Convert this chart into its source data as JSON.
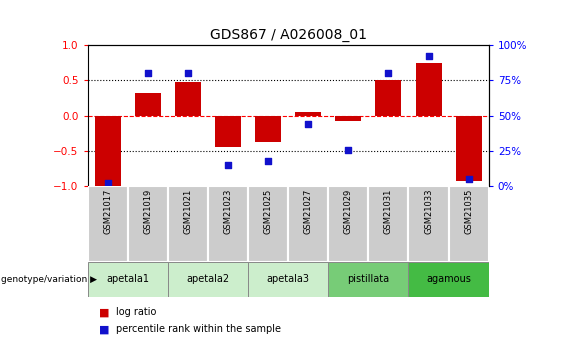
{
  "title": "GDS867 / A026008_01",
  "samples": [
    "GSM21017",
    "GSM21019",
    "GSM21021",
    "GSM21023",
    "GSM21025",
    "GSM21027",
    "GSM21029",
    "GSM21031",
    "GSM21033",
    "GSM21035"
  ],
  "log_ratio": [
    -1.0,
    0.32,
    0.47,
    -0.45,
    -0.38,
    0.05,
    -0.08,
    0.5,
    0.75,
    -0.93
  ],
  "percentile": [
    2,
    80,
    80,
    15,
    18,
    44,
    26,
    80,
    92,
    5
  ],
  "bar_color": "#cc0000",
  "dot_color": "#1111cc",
  "ylim": [
    -1,
    1
  ],
  "yticks": [
    -1,
    -0.5,
    0,
    0.5,
    1
  ],
  "y2ticks": [
    0,
    25,
    50,
    75,
    100
  ],
  "y2ticklabels": [
    "0%",
    "25%",
    "50%",
    "75%",
    "100%"
  ],
  "dotted_lines_black": [
    -0.5,
    0.5
  ],
  "dotted_line_red": 0,
  "groups": [
    {
      "label": "apetala1",
      "start": 0,
      "end": 2,
      "color": "#cceecc"
    },
    {
      "label": "apetala2",
      "start": 2,
      "end": 4,
      "color": "#cceecc"
    },
    {
      "label": "apetala3",
      "start": 4,
      "end": 6,
      "color": "#cceecc"
    },
    {
      "label": "pistillata",
      "start": 6,
      "end": 8,
      "color": "#77cc77"
    },
    {
      "label": "agamous",
      "start": 8,
      "end": 10,
      "color": "#44bb44"
    }
  ],
  "legend_red_label": "log ratio",
  "legend_blue_label": "percentile rank within the sample",
  "genotype_label": "genotype/variation",
  "sample_bg_color": "#cccccc",
  "sample_border_color": "#ffffff",
  "title_fontsize": 10,
  "bar_width": 0.65
}
